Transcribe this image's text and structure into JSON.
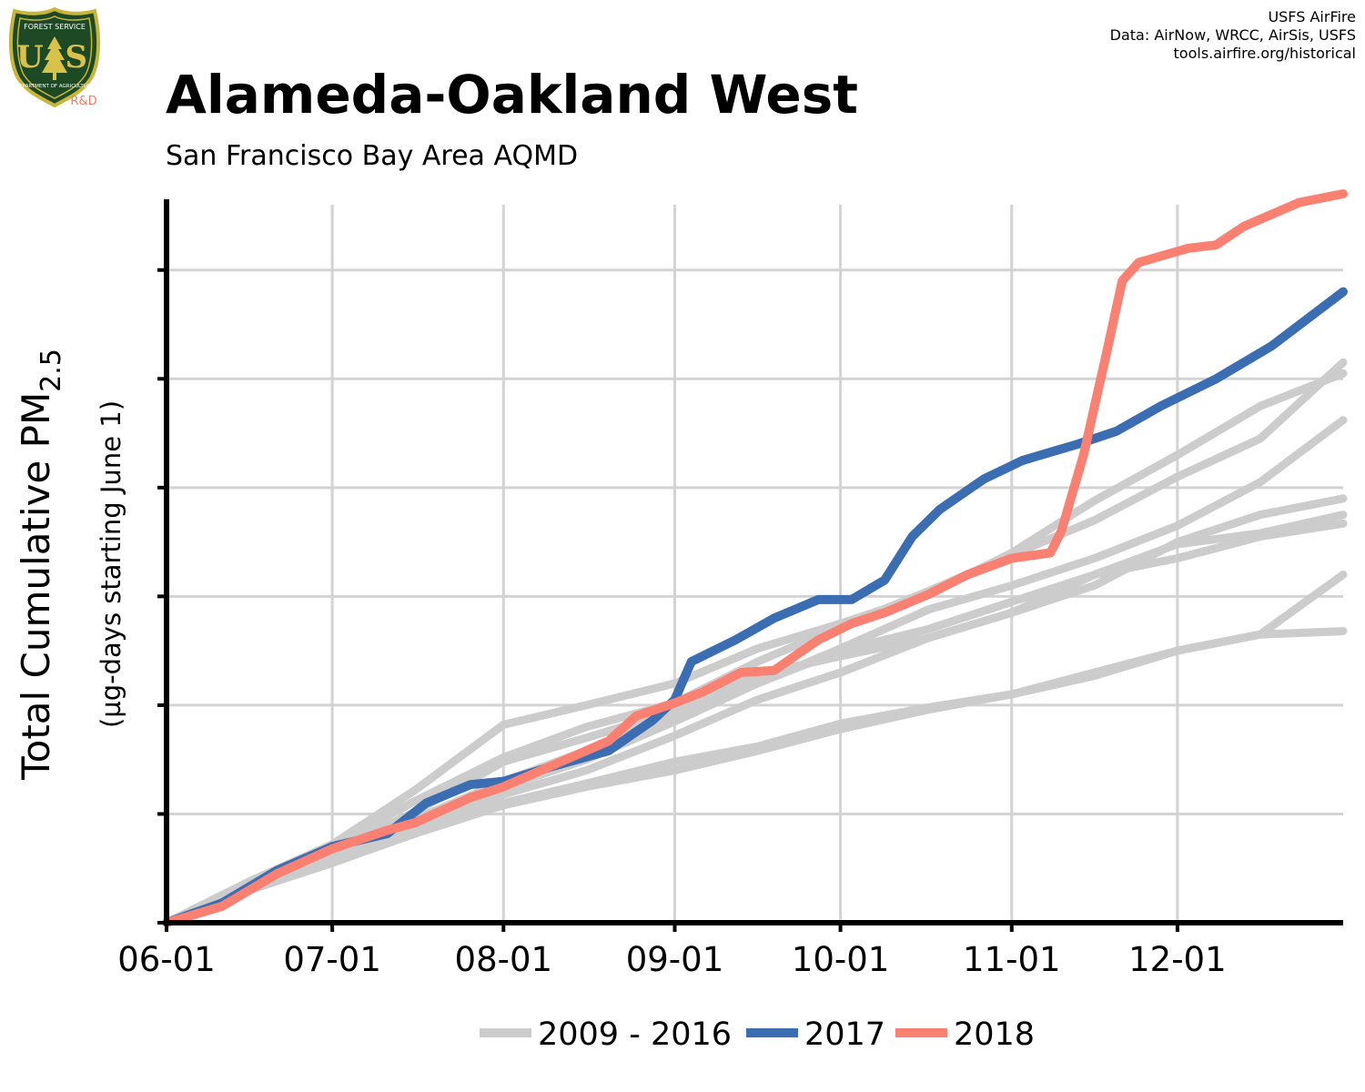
{
  "header": {
    "title": "Alameda-Oakland West",
    "subtitle": "San Francisco Bay Area AQMD",
    "credits": [
      "USFS AirFire",
      "Data: AirNow, WRCC, AirSis, USFS",
      "tools.airfire.org/historical"
    ]
  },
  "logo": {
    "top_text": "FOREST SERVICE",
    "letters": "U S",
    "bottom_text": "DEPARTMENT OF AGRICULTURE",
    "tag": "R&D",
    "colors": {
      "shield": "#1d4a25",
      "border": "#c9b53a",
      "tag": "#f4796b"
    }
  },
  "colors": {
    "grid": "#d3d3d3",
    "historical": "#cccccc",
    "y2017": "#3b6db3",
    "y2018": "#fa8072"
  },
  "chart_data": {
    "type": "line",
    "xlabel": "",
    "ylabel_main": "Total Cumulative PM",
    "ylabel_subscript": "2.5",
    "ylabel_sub": "(µg-days starting June 1)",
    "x_ticks": [
      "06-01",
      "07-01",
      "08-01",
      "09-01",
      "10-01",
      "11-01",
      "12-01"
    ],
    "x_tick_days": [
      0,
      30,
      61,
      92,
      122,
      153,
      183
    ],
    "xlim": [
      0,
      213
    ],
    "ylim": [
      0,
      6.6
    ],
    "y_ticks": [
      0,
      1,
      2,
      3,
      4,
      5,
      6
    ],
    "y_tick_labels_visible": false,
    "grid": true,
    "legend": {
      "position": "bottom",
      "entries": [
        {
          "label": "2009 - 2016",
          "color": "#cccccc"
        },
        {
          "label": "2017",
          "color": "#3b6db3"
        },
        {
          "label": "2018",
          "color": "#fa8072"
        }
      ]
    },
    "series": [
      {
        "group": "historical",
        "color": "#cccccc",
        "values": [
          [
            0,
            0
          ],
          [
            15,
            0.34
          ],
          [
            30,
            0.62
          ],
          [
            45,
            0.88
          ],
          [
            61,
            1.18
          ],
          [
            76,
            1.4
          ],
          [
            92,
            1.72
          ],
          [
            107,
            2.05
          ],
          [
            122,
            2.3
          ],
          [
            138,
            2.62
          ],
          [
            153,
            2.85
          ],
          [
            168,
            3.1
          ],
          [
            183,
            3.5
          ],
          [
            198,
            3.75
          ],
          [
            213,
            3.9
          ]
        ]
      },
      {
        "group": "historical",
        "color": "#cccccc",
        "values": [
          [
            0,
            0
          ],
          [
            15,
            0.36
          ],
          [
            30,
            0.64
          ],
          [
            45,
            0.95
          ],
          [
            61,
            1.25
          ],
          [
            76,
            1.5
          ],
          [
            92,
            1.85
          ],
          [
            107,
            2.2
          ],
          [
            122,
            2.52
          ],
          [
            138,
            2.88
          ],
          [
            153,
            3.1
          ],
          [
            168,
            3.35
          ],
          [
            183,
            3.65
          ],
          [
            198,
            4.05
          ],
          [
            213,
            4.62
          ]
        ]
      },
      {
        "group": "historical",
        "color": "#cccccc",
        "values": [
          [
            0,
            0
          ],
          [
            15,
            0.3
          ],
          [
            30,
            0.58
          ],
          [
            45,
            0.85
          ],
          [
            61,
            1.1
          ],
          [
            76,
            1.28
          ],
          [
            92,
            1.48
          ],
          [
            107,
            1.62
          ],
          [
            122,
            1.83
          ],
          [
            138,
            1.98
          ],
          [
            153,
            2.1
          ],
          [
            168,
            2.3
          ],
          [
            183,
            2.5
          ],
          [
            198,
            2.65
          ],
          [
            213,
            2.68
          ]
        ]
      },
      {
        "group": "historical",
        "color": "#cccccc",
        "values": [
          [
            0,
            0
          ],
          [
            15,
            0.3
          ],
          [
            30,
            0.55
          ],
          [
            45,
            0.82
          ],
          [
            61,
            1.08
          ],
          [
            76,
            1.25
          ],
          [
            92,
            1.4
          ],
          [
            107,
            1.58
          ],
          [
            122,
            1.78
          ],
          [
            138,
            1.96
          ],
          [
            153,
            2.1
          ],
          [
            168,
            2.27
          ],
          [
            183,
            2.5
          ],
          [
            198,
            2.65
          ],
          [
            213,
            3.2
          ]
        ]
      },
      {
        "group": "historical",
        "color": "#cccccc",
        "values": [
          [
            0,
            0
          ],
          [
            15,
            0.32
          ],
          [
            30,
            0.65
          ],
          [
            45,
            1.02
          ],
          [
            61,
            1.48
          ],
          [
            76,
            1.7
          ],
          [
            92,
            1.95
          ],
          [
            107,
            2.28
          ],
          [
            122,
            2.45
          ],
          [
            138,
            2.62
          ],
          [
            153,
            2.85
          ],
          [
            168,
            3.2
          ],
          [
            183,
            3.48
          ],
          [
            198,
            3.58
          ],
          [
            213,
            3.75
          ]
        ]
      },
      {
        "group": "historical",
        "color": "#cccccc",
        "values": [
          [
            0,
            0
          ],
          [
            15,
            0.33
          ],
          [
            30,
            0.62
          ],
          [
            45,
            0.95
          ],
          [
            61,
            1.3
          ],
          [
            76,
            1.58
          ],
          [
            92,
            1.92
          ],
          [
            107,
            2.2
          ],
          [
            122,
            2.5
          ],
          [
            138,
            2.7
          ],
          [
            153,
            2.95
          ],
          [
            168,
            3.2
          ],
          [
            183,
            3.35
          ],
          [
            198,
            3.55
          ],
          [
            213,
            3.67
          ]
        ]
      },
      {
        "group": "historical",
        "color": "#cccccc",
        "values": [
          [
            0,
            0
          ],
          [
            15,
            0.32
          ],
          [
            30,
            0.7
          ],
          [
            45,
            1.12
          ],
          [
            61,
            1.52
          ],
          [
            76,
            1.8
          ],
          [
            92,
            2.02
          ],
          [
            107,
            2.4
          ],
          [
            122,
            2.72
          ],
          [
            138,
            3.05
          ],
          [
            153,
            3.38
          ],
          [
            168,
            3.7
          ],
          [
            183,
            4.1
          ],
          [
            198,
            4.45
          ],
          [
            213,
            5.15
          ]
        ]
      },
      {
        "group": "historical",
        "color": "#cccccc",
        "values": [
          [
            0,
            0
          ],
          [
            15,
            0.38
          ],
          [
            30,
            0.72
          ],
          [
            45,
            1.22
          ],
          [
            61,
            1.82
          ],
          [
            76,
            2.0
          ],
          [
            92,
            2.2
          ],
          [
            107,
            2.52
          ],
          [
            122,
            2.75
          ],
          [
            138,
            3.02
          ],
          [
            153,
            3.4
          ],
          [
            168,
            3.88
          ],
          [
            183,
            4.3
          ],
          [
            198,
            4.75
          ],
          [
            213,
            5.05
          ]
        ]
      },
      {
        "group": "2017",
        "label": "2017",
        "color": "#3b6db3",
        "values": [
          [
            0,
            0
          ],
          [
            10,
            0.18
          ],
          [
            20,
            0.48
          ],
          [
            30,
            0.7
          ],
          [
            40,
            0.82
          ],
          [
            47,
            1.1
          ],
          [
            55,
            1.27
          ],
          [
            61,
            1.3
          ],
          [
            70,
            1.44
          ],
          [
            80,
            1.58
          ],
          [
            88,
            1.86
          ],
          [
            92,
            2.05
          ],
          [
            95,
            2.4
          ],
          [
            103,
            2.6
          ],
          [
            110,
            2.8
          ],
          [
            118,
            2.97
          ],
          [
            124,
            2.97
          ],
          [
            130,
            3.15
          ],
          [
            135,
            3.55
          ],
          [
            140,
            3.8
          ],
          [
            148,
            4.08
          ],
          [
            155,
            4.25
          ],
          [
            165,
            4.4
          ],
          [
            172,
            4.52
          ],
          [
            180,
            4.75
          ],
          [
            190,
            5.0
          ],
          [
            200,
            5.3
          ],
          [
            213,
            5.8
          ]
        ]
      },
      {
        "group": "2018",
        "label": "2018",
        "color": "#fa8072",
        "values": [
          [
            0,
            0
          ],
          [
            10,
            0.15
          ],
          [
            20,
            0.45
          ],
          [
            30,
            0.68
          ],
          [
            40,
            0.85
          ],
          [
            45,
            0.92
          ],
          [
            55,
            1.15
          ],
          [
            61,
            1.25
          ],
          [
            70,
            1.45
          ],
          [
            80,
            1.67
          ],
          [
            85,
            1.9
          ],
          [
            92,
            2.02
          ],
          [
            97,
            2.12
          ],
          [
            104,
            2.3
          ],
          [
            110,
            2.32
          ],
          [
            118,
            2.6
          ],
          [
            124,
            2.75
          ],
          [
            130,
            2.85
          ],
          [
            138,
            3.02
          ],
          [
            145,
            3.2
          ],
          [
            153,
            3.35
          ],
          [
            160,
            3.4
          ],
          [
            162,
            3.6
          ],
          [
            166,
            4.3
          ],
          [
            170,
            5.2
          ],
          [
            173,
            5.9
          ],
          [
            176,
            6.07
          ],
          [
            185,
            6.2
          ],
          [
            190,
            6.23
          ],
          [
            195,
            6.4
          ],
          [
            205,
            6.62
          ],
          [
            213,
            6.7
          ]
        ]
      }
    ]
  }
}
